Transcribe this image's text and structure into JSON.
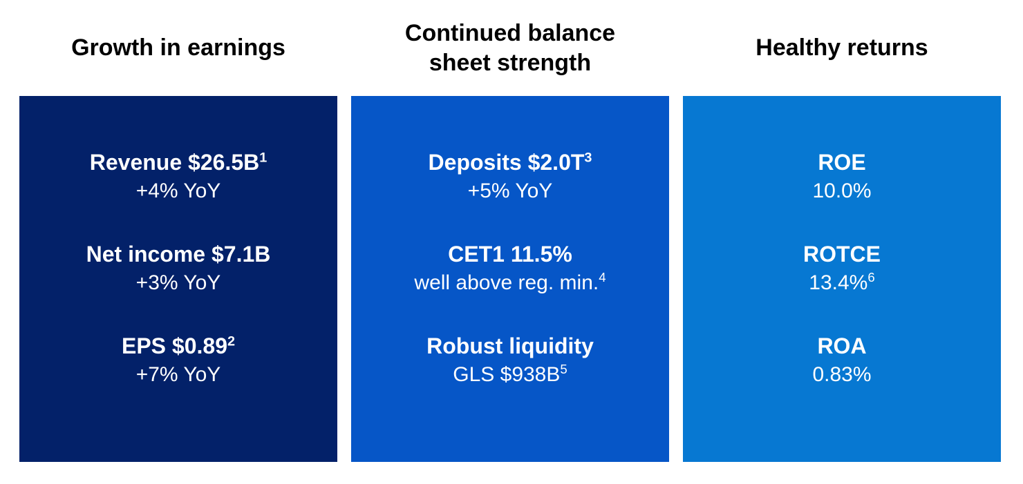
{
  "slide": {
    "background_color": "#ffffff",
    "heading_color": "#000000",
    "metric_text_color": "#ffffff"
  },
  "columns": [
    {
      "id": "growth-in-earnings",
      "heading": "Growth in earnings",
      "heading_lines": [
        "Growth in earnings"
      ],
      "box_color": "#032169",
      "items": [
        {
          "title": "Revenue $26.5B",
          "title_sup": "1",
          "subtitle": "+4% YoY",
          "subtitle_sup": ""
        },
        {
          "title": "Net income $7.1B",
          "title_sup": "",
          "subtitle": "+3% YoY",
          "subtitle_sup": ""
        },
        {
          "title": "EPS $0.89",
          "title_sup": "2",
          "subtitle": "+7% YoY",
          "subtitle_sup": ""
        }
      ]
    },
    {
      "id": "continued-balance-sheet-strength",
      "heading": "Continued balance sheet strength",
      "heading_lines": [
        "Continued balance",
        "sheet strength"
      ],
      "box_color": "#0656C7",
      "items": [
        {
          "title": "Deposits $2.0T",
          "title_sup": "3",
          "subtitle": "+5% YoY",
          "subtitle_sup": ""
        },
        {
          "title": "CET1 11.5%",
          "title_sup": "",
          "subtitle": "well above reg. min.",
          "subtitle_sup": "4"
        },
        {
          "title": "Robust liquidity",
          "title_sup": "",
          "subtitle": "GLS $938B",
          "subtitle_sup": "5"
        }
      ]
    },
    {
      "id": "healthy-returns",
      "heading": "Healthy returns",
      "heading_lines": [
        "Healthy returns"
      ],
      "box_color": "#0778D2",
      "items": [
        {
          "title": "ROE",
          "title_sup": "",
          "subtitle": "10.0%",
          "subtitle_sup": ""
        },
        {
          "title": "ROTCE",
          "title_sup": "",
          "subtitle": "13.4%",
          "subtitle_sup": "6"
        },
        {
          "title": "ROA",
          "title_sup": "",
          "subtitle": "0.83%",
          "subtitle_sup": ""
        }
      ]
    }
  ]
}
